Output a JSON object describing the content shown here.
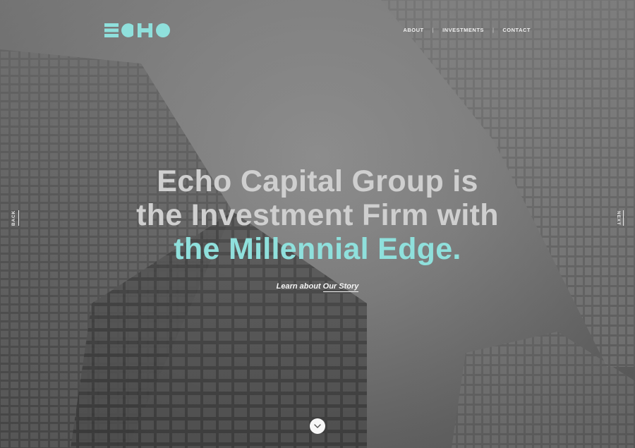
{
  "brand": {
    "logo_text": "ECHO",
    "accent_color": "#8fe0dc"
  },
  "nav": {
    "items": [
      {
        "label": "ABOUT"
      },
      {
        "label": "INVESTMENTS"
      },
      {
        "label": "CONTACT"
      }
    ],
    "separator": "|"
  },
  "hero": {
    "line1": "Echo Capital Group is",
    "line2": "the Investment Firm with",
    "line3_accent": "the Millennial Edge.",
    "cta_prefix": "Learn about",
    "cta_link": "Our Story"
  },
  "side_nav": {
    "back_label": "BACK",
    "next_label": "NEXT"
  },
  "scroll": {
    "icon": "chevron-down-icon"
  }
}
